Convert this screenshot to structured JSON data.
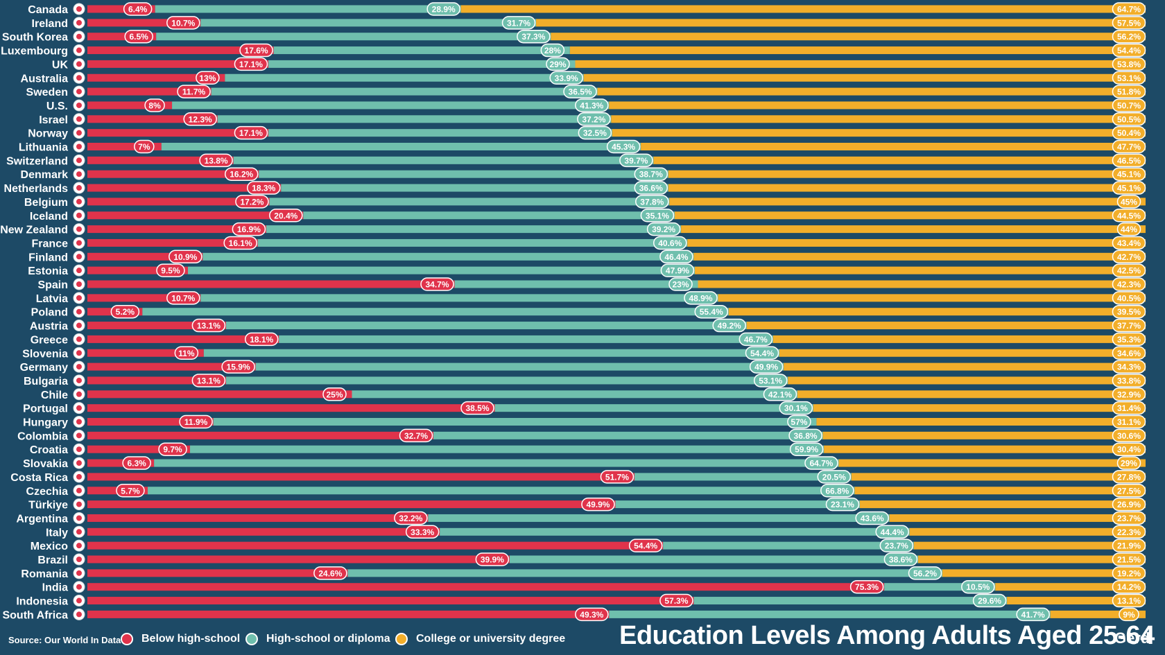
{
  "colors": {
    "below_high_school": "#e0334b",
    "high_school": "#6fbfad",
    "college": "#f2ae2a",
    "background": "#1d4a66"
  },
  "chart_data": {
    "type": "bar",
    "stacked": true,
    "orientation": "horizontal",
    "title": "Education Levels  Among Adults Aged 25-64",
    "legend_position": "bottom",
    "series": [
      {
        "name": "Below high-school",
        "color": "#e0334b"
      },
      {
        "name": "High-school or diploma",
        "color": "#6fbfad"
      },
      {
        "name": "College or university degree",
        "color": "#f2ae2a"
      }
    ],
    "rows": [
      {
        "country": "Canada",
        "below": 6.4,
        "hs": 28.9,
        "college": 64.7
      },
      {
        "country": "Ireland",
        "below": 10.7,
        "hs": 31.7,
        "college": 57.5
      },
      {
        "country": "South Korea",
        "below": 6.5,
        "hs": 37.3,
        "college": 56.2
      },
      {
        "country": "Luxembourg",
        "below": 17.6,
        "hs": 28,
        "college": 54.4
      },
      {
        "country": "UK",
        "below": 17.1,
        "hs": 29,
        "college": 53.8
      },
      {
        "country": "Australia",
        "below": 13,
        "hs": 33.9,
        "college": 53.1
      },
      {
        "country": "Sweden",
        "below": 11.7,
        "hs": 36.5,
        "college": 51.8
      },
      {
        "country": "U.S.",
        "below": 8,
        "hs": 41.3,
        "college": 50.7
      },
      {
        "country": "Israel",
        "below": 12.3,
        "hs": 37.2,
        "college": 50.5
      },
      {
        "country": "Norway",
        "below": 17.1,
        "hs": 32.5,
        "college": 50.4
      },
      {
        "country": "Lithuania",
        "below": 7,
        "hs": 45.3,
        "college": 47.7
      },
      {
        "country": "Switzerland",
        "below": 13.8,
        "hs": 39.7,
        "college": 46.5
      },
      {
        "country": "Denmark",
        "below": 16.2,
        "hs": 38.7,
        "college": 45.1
      },
      {
        "country": "Netherlands",
        "below": 18.3,
        "hs": 36.6,
        "college": 45.1
      },
      {
        "country": "Belgium",
        "below": 17.2,
        "hs": 37.8,
        "college": 45
      },
      {
        "country": "Iceland",
        "below": 20.4,
        "hs": 35.1,
        "college": 44.5
      },
      {
        "country": "New Zealand",
        "below": 16.9,
        "hs": 39.2,
        "college": 44
      },
      {
        "country": "France",
        "below": 16.1,
        "hs": 40.6,
        "college": 43.4
      },
      {
        "country": "Finland",
        "below": 10.9,
        "hs": 46.4,
        "college": 42.7
      },
      {
        "country": "Estonia",
        "below": 9.5,
        "hs": 47.9,
        "college": 42.5
      },
      {
        "country": "Spain",
        "below": 34.7,
        "hs": 23,
        "college": 42.3
      },
      {
        "country": "Latvia",
        "below": 10.7,
        "hs": 48.9,
        "college": 40.5
      },
      {
        "country": "Poland",
        "below": 5.2,
        "hs": 55.4,
        "college": 39.5
      },
      {
        "country": "Austria",
        "below": 13.1,
        "hs": 49.2,
        "college": 37.7
      },
      {
        "country": "Greece",
        "below": 18.1,
        "hs": 46.7,
        "college": 35.3
      },
      {
        "country": "Slovenia",
        "below": 11,
        "hs": 54.4,
        "college": 34.6
      },
      {
        "country": "Germany",
        "below": 15.9,
        "hs": 49.9,
        "college": 34.3
      },
      {
        "country": "Bulgaria",
        "below": 13.1,
        "hs": 53.1,
        "college": 33.8
      },
      {
        "country": "Chile",
        "below": 25,
        "hs": 42.1,
        "college": 32.9
      },
      {
        "country": "Portugal",
        "below": 38.5,
        "hs": 30.1,
        "college": 31.4
      },
      {
        "country": "Hungary",
        "below": 11.9,
        "hs": 57,
        "college": 31.1
      },
      {
        "country": "Colombia",
        "below": 32.7,
        "hs": 36.8,
        "college": 30.6
      },
      {
        "country": "Croatia",
        "below": 9.7,
        "hs": 59.9,
        "college": 30.4
      },
      {
        "country": "Slovakia",
        "below": 6.3,
        "hs": 64.7,
        "college": 29
      },
      {
        "country": "Costa Rica",
        "below": 51.7,
        "hs": 20.5,
        "college": 27.8
      },
      {
        "country": "Czechia",
        "below": 5.7,
        "hs": 66.8,
        "college": 27.5
      },
      {
        "country": "Türkiye",
        "below": 49.9,
        "hs": 23.1,
        "college": 26.9
      },
      {
        "country": "Argentina",
        "below": 32.2,
        "hs": 43.6,
        "college": 23.7
      },
      {
        "country": "Italy",
        "below": 33.3,
        "hs": 44.4,
        "college": 22.3
      },
      {
        "country": "Mexico",
        "below": 54.4,
        "hs": 23.7,
        "college": 21.9
      },
      {
        "country": "Brazil",
        "below": 39.9,
        "hs": 38.6,
        "college": 21.5
      },
      {
        "country": "Romania",
        "below": 24.6,
        "hs": 56.2,
        "college": 19.2
      },
      {
        "country": "India",
        "below": 75.3,
        "hs": 10.5,
        "college": 14.2
      },
      {
        "country": "Indonesia",
        "below": 57.3,
        "hs": 29.6,
        "college": 13.1
      },
      {
        "country": "South Africa",
        "below": 49.3,
        "hs": 41.7,
        "college": 9
      }
    ]
  },
  "footer": {
    "source": "Source: Our World In Data",
    "legend": [
      {
        "label": "Below high-school"
      },
      {
        "label": "High-school or diploma"
      },
      {
        "label": "College or university degree"
      }
    ],
    "title": "Education Levels  Among Adults Aged 25-64",
    "logo": "Gērd"
  }
}
